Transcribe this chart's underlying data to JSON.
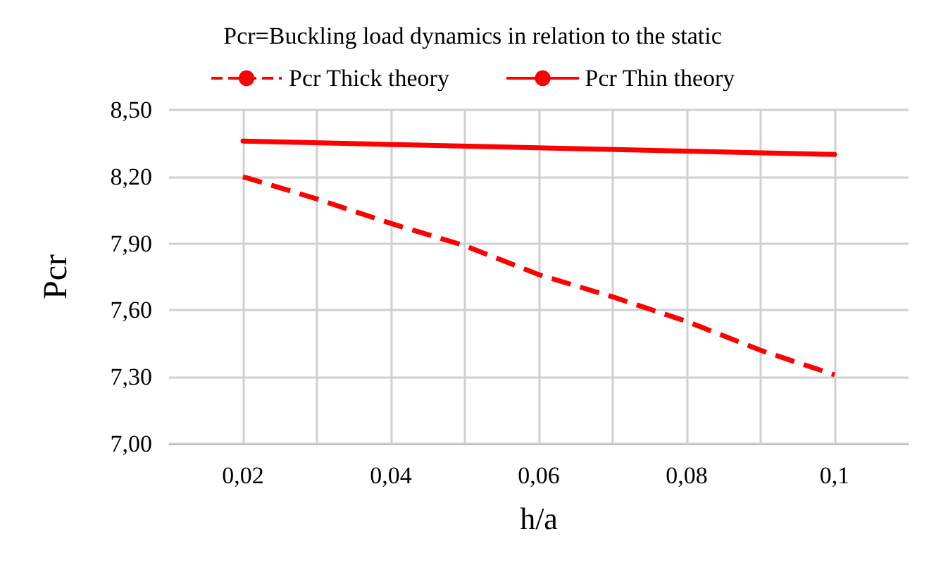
{
  "chart_data": {
    "type": "line",
    "title": "Pcr=Buckling load dynamics in relation to the static",
    "xlabel": "h/a",
    "ylabel": "Pcr",
    "legend": "top",
    "grid": true,
    "marker": "none",
    "xlim": [
      0.01,
      0.11
    ],
    "xticks": [
      {
        "value": 0.02,
        "label": "0,02"
      },
      {
        "value": 0.03,
        "label": null
      },
      {
        "value": 0.04,
        "label": "0,04"
      },
      {
        "value": 0.05,
        "label": null
      },
      {
        "value": 0.06,
        "label": "0,06"
      },
      {
        "value": 0.07,
        "label": null
      },
      {
        "value": 0.08,
        "label": "0,08"
      },
      {
        "value": 0.09,
        "label": null
      },
      {
        "value": 0.1,
        "label": "0,1"
      }
    ],
    "ylim": [
      7,
      8.5
    ],
    "yticks": [
      {
        "value": 7,
        "label": "7,00"
      },
      {
        "value": 7.3,
        "label": "7,30"
      },
      {
        "value": 7.6,
        "label": "7,60"
      },
      {
        "value": 7.9,
        "label": "7,90"
      },
      {
        "value": 8.2,
        "label": "8,20"
      },
      {
        "value": 8.5,
        "label": "8,50"
      }
    ],
    "series": [
      {
        "name": "Pcr Thick theory",
        "color": "#ff0000",
        "line_style": "dashed",
        "x": [
          0.02,
          0.03,
          0.04,
          0.05,
          0.06,
          0.07,
          0.08,
          0.09,
          0.1
        ],
        "values": [
          8.2,
          8.1,
          7.99,
          7.89,
          7.76,
          7.66,
          7.55,
          7.42,
          7.31
        ]
      },
      {
        "name": "Pcr Thin theory",
        "color": "#ff0000",
        "line_style": "solid",
        "x": [
          0.02,
          0.1
        ],
        "values": [
          8.36,
          8.3
        ]
      }
    ]
  }
}
